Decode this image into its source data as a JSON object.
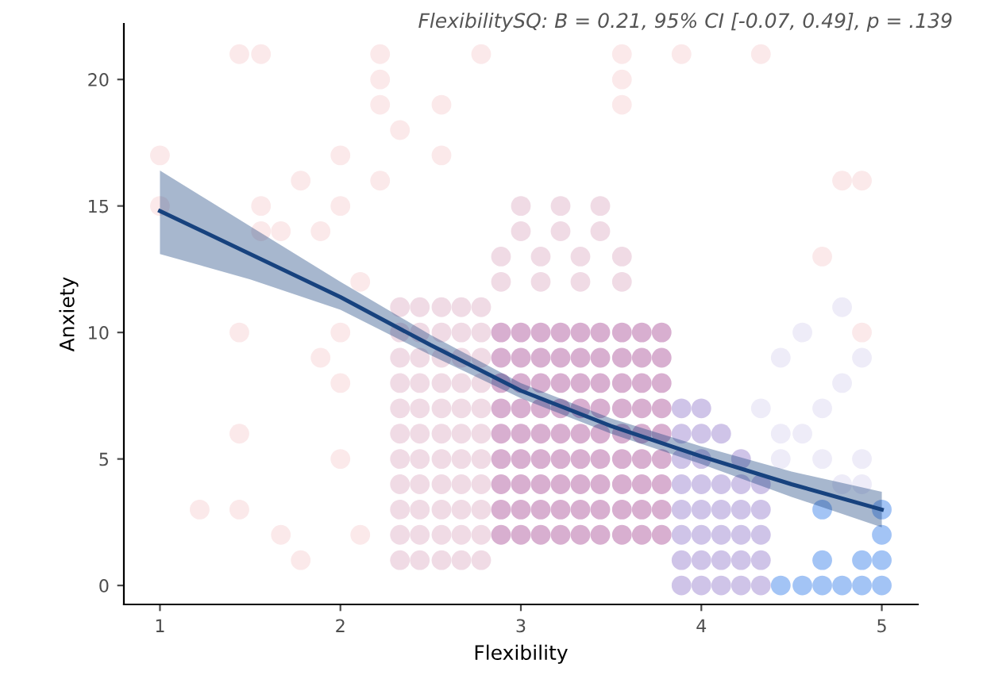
{
  "chart_data": {
    "type": "scatter",
    "xlabel": "Flexibility",
    "ylabel": "Anxiety",
    "annotations": [
      "FlexibilitySQ: B = 0.21, 95% CI [-0.07, 0.49], p = .139"
    ],
    "xlim": [
      0.8,
      5.2
    ],
    "ylim": [
      -0.75,
      22.2
    ],
    "xticks": [
      1,
      2,
      3,
      4,
      5
    ],
    "yticks": [
      0,
      5,
      10,
      15,
      20
    ],
    "grid": false,
    "legend": false,
    "series": [
      {
        "marker": "circle",
        "color": "#fbe9ea",
        "x": [
          1,
          1,
          1.44,
          1.56,
          1.22,
          1.44,
          1.44,
          1.44,
          1.56,
          1.89,
          2,
          2,
          2,
          2.22,
          2.22,
          2.22,
          2.33,
          2.56,
          2.78,
          2.56,
          1.89,
          2,
          2,
          2.11,
          1.67,
          1.78,
          1.56,
          1.78,
          1.67,
          2.11,
          2.22,
          4.89,
          4.78,
          4.67,
          3.89,
          3.56,
          3.56,
          4.33,
          3.56,
          4.89
        ],
        "values": [
          17,
          15,
          21,
          21,
          3,
          3,
          6,
          10,
          14,
          14,
          17,
          15,
          10,
          19,
          20,
          21,
          18,
          17,
          21,
          19,
          9,
          8,
          5,
          2,
          2,
          1,
          15,
          16,
          14,
          12,
          16,
          16,
          16,
          13,
          21,
          20,
          21,
          21,
          19,
          10
        ]
      },
      {
        "marker": "circle",
        "color": "#f0dbe5",
        "x": [
          2.33,
          2.44,
          2.56,
          2.67,
          2.78,
          2.33,
          2.44,
          2.56,
          2.67,
          2.78,
          2.33,
          2.44,
          2.56,
          2.67,
          2.78,
          2.33,
          2.44,
          2.56,
          2.67,
          2.78,
          2.33,
          2.44,
          2.56,
          2.67,
          2.78,
          2.33,
          2.44,
          2.56,
          2.67,
          2.78,
          2.33,
          2.44,
          2.56,
          2.67,
          2.78,
          2.33,
          2.44,
          2.56,
          2.67,
          2.78,
          2.33,
          2.44,
          2.56,
          2.67,
          2.78,
          2.33,
          2.44,
          2.56,
          2.67,
          2.78,
          2.33,
          2.44,
          2.56,
          2.67,
          2.78,
          2.89,
          3.11,
          3.33,
          3.56,
          2.89,
          3.11,
          3.33,
          3.56,
          3,
          3.22,
          3.44,
          3,
          3.22,
          3.44
        ],
        "values": [
          1,
          1,
          1,
          1,
          1,
          2,
          2,
          2,
          2,
          2,
          3,
          3,
          3,
          3,
          3,
          4,
          4,
          4,
          4,
          4,
          5,
          5,
          5,
          5,
          5,
          6,
          6,
          6,
          6,
          6,
          7,
          7,
          7,
          7,
          7,
          8,
          8,
          8,
          8,
          8,
          9,
          9,
          9,
          9,
          9,
          10,
          10,
          10,
          10,
          10,
          11,
          11,
          11,
          11,
          11,
          12,
          12,
          12,
          12,
          13,
          13,
          13,
          13,
          14,
          14,
          14,
          15,
          15,
          15
        ]
      },
      {
        "marker": "circle",
        "color": "#d8afd0",
        "x": [
          2.89,
          3,
          3.11,
          3.22,
          3.33,
          3.44,
          3.56,
          3.67,
          3.78,
          2.89,
          3,
          3.11,
          3.22,
          3.33,
          3.44,
          3.56,
          3.67,
          3.78,
          2.89,
          3,
          3.11,
          3.22,
          3.33,
          3.44,
          3.56,
          3.67,
          3.78,
          2.89,
          3,
          3.11,
          3.22,
          3.33,
          3.44,
          3.56,
          3.67,
          3.78,
          2.89,
          3,
          3.11,
          3.22,
          3.33,
          3.44,
          3.56,
          3.67,
          3.78,
          2.89,
          3,
          3.11,
          3.22,
          3.33,
          3.44,
          3.56,
          3.67,
          3.78,
          2.89,
          3,
          3.11,
          3.22,
          3.33,
          3.44,
          3.56,
          3.67,
          3.78,
          2.89,
          3,
          3.11,
          3.22,
          3.33,
          3.44,
          3.56,
          3.67,
          3.78,
          2.89,
          3,
          3.11,
          3.22,
          3.33,
          3.44,
          3.56,
          3.67,
          3.78
        ],
        "values": [
          2,
          2,
          2,
          2,
          2,
          2,
          2,
          2,
          2,
          3,
          3,
          3,
          3,
          3,
          3,
          3,
          3,
          3,
          4,
          4,
          4,
          4,
          4,
          4,
          4,
          4,
          4,
          5,
          5,
          5,
          5,
          5,
          5,
          5,
          5,
          5,
          6,
          6,
          6,
          6,
          6,
          6,
          6,
          6,
          6,
          7,
          7,
          7,
          7,
          7,
          7,
          7,
          7,
          7,
          8,
          8,
          8,
          8,
          8,
          8,
          8,
          8,
          8,
          9,
          9,
          9,
          9,
          9,
          9,
          9,
          9,
          9,
          10,
          10,
          10,
          10,
          10,
          10,
          10,
          10,
          10
        ]
      },
      {
        "marker": "circle",
        "color": "#cfc4e8",
        "x": [
          3.89,
          4,
          4.11,
          4.22,
          4.33,
          3.89,
          4,
          4.11,
          4.22,
          4.33,
          3.89,
          4,
          4.11,
          4.22,
          4.33,
          3.89,
          4,
          4.11,
          4.22,
          4.33,
          3.89,
          4,
          4.11,
          4.22,
          4.33,
          3.89,
          4,
          4.11,
          4.22,
          3.89,
          4,
          4.11,
          3.89,
          4
        ],
        "values": [
          0,
          0,
          0,
          0,
          0,
          1,
          1,
          1,
          1,
          1,
          2,
          2,
          2,
          2,
          2,
          3,
          3,
          3,
          3,
          3,
          4,
          4,
          4,
          4,
          4,
          5,
          5,
          null,
          5,
          6,
          6,
          6,
          7,
          7
        ]
      },
      {
        "marker": "circle",
        "color": "#eeecf8",
        "x": [
          4.78,
          4.89,
          4.44,
          4.67,
          4.89,
          4.44,
          4.56,
          4.33,
          4.67,
          4.78,
          4.44,
          4.89,
          4.56,
          4.78
        ],
        "values": [
          4,
          4,
          5,
          5,
          5,
          6,
          6,
          7,
          7,
          8,
          9,
          9,
          10,
          11
        ]
      },
      {
        "marker": "circle",
        "color": "#a3c4f5",
        "x": [
          4.44,
          4.56,
          4.67,
          4.78,
          4.89,
          5,
          4.67,
          4.89,
          5,
          5,
          4.67,
          5
        ],
        "values": [
          0,
          0,
          0,
          0,
          0,
          0,
          1,
          1,
          1,
          2,
          3,
          3
        ]
      },
      {
        "type": "line",
        "color": "#17427e",
        "line_style": "solid",
        "marker": "none",
        "x": [
          1,
          1.5,
          2,
          2.5,
          3,
          3.5,
          4,
          4.5,
          5
        ],
        "values": [
          14.8,
          13.1,
          11.4,
          9.5,
          7.7,
          6.3,
          5.1,
          4,
          3
        ],
        "lower": [
          13.1,
          12.1,
          10.9,
          9.1,
          7.4,
          6,
          4.8,
          3.5,
          2.3
        ],
        "upper": [
          16.4,
          14.2,
          12,
          9.9,
          8,
          6.6,
          5.5,
          4.5,
          3.7
        ]
      }
    ]
  }
}
